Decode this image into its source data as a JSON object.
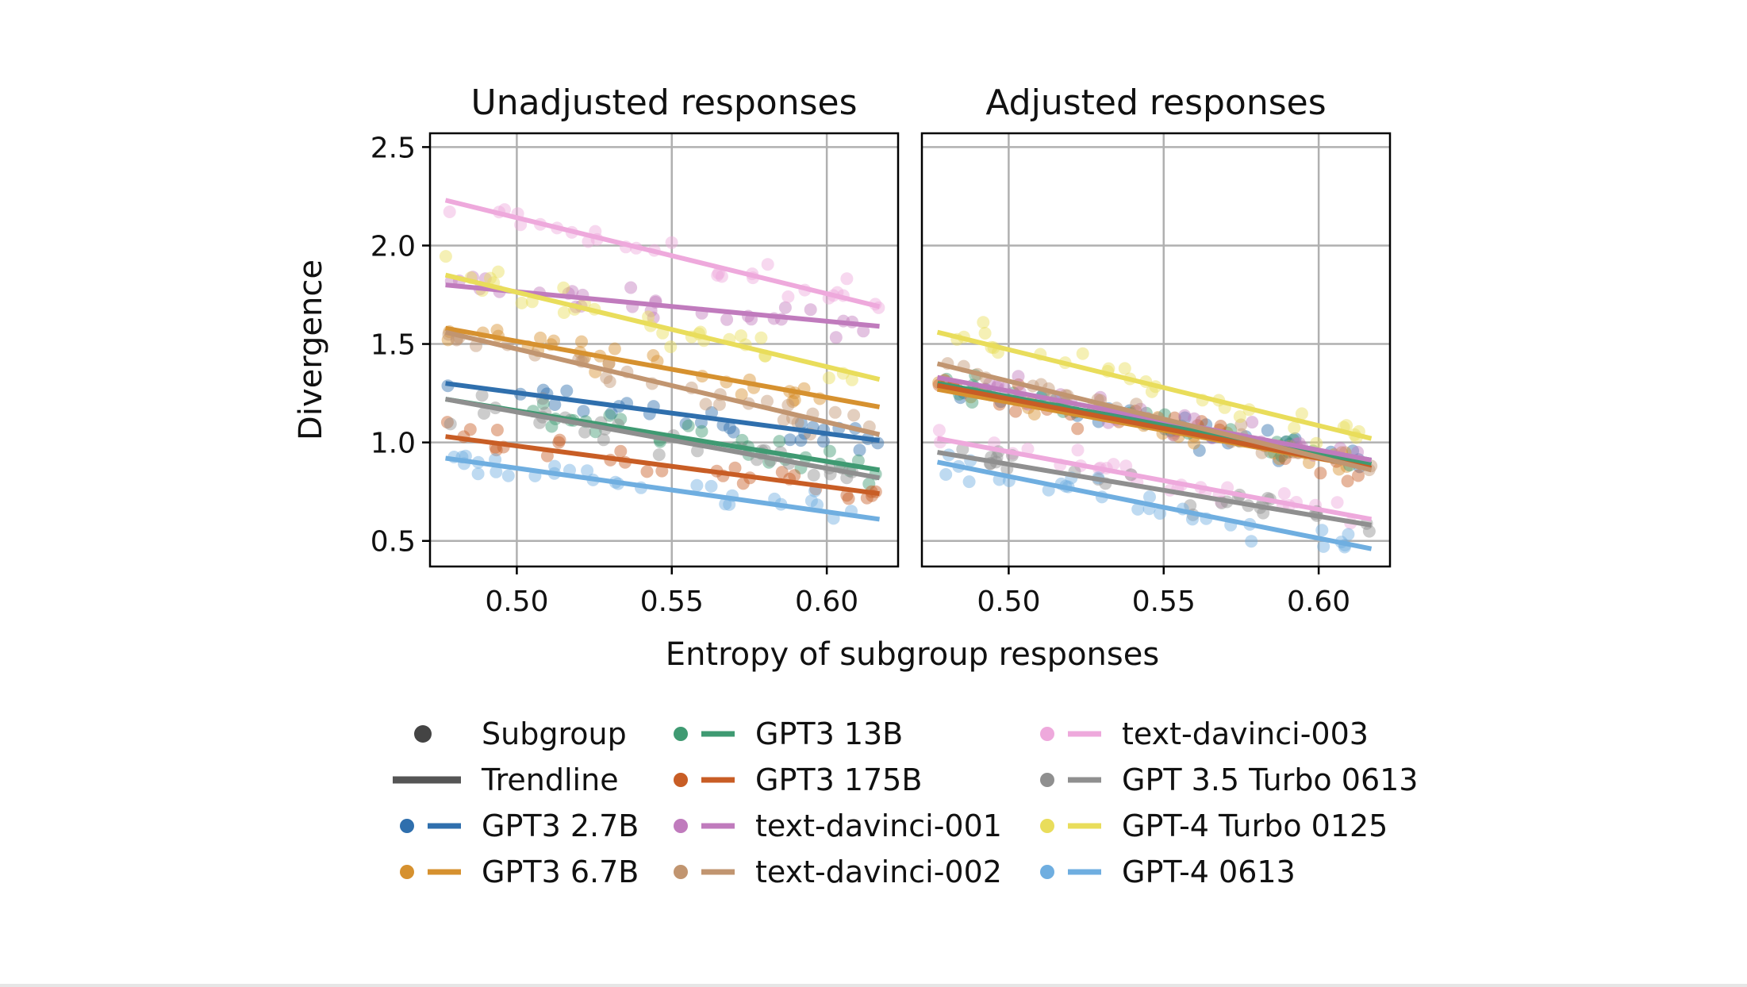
{
  "chart_data": {
    "type": "scatter",
    "xlabel": "Entropy of subgroup responses",
    "ylabel": "Divergence",
    "xlim": [
      0.472,
      0.623
    ],
    "ylim": [
      0.37,
      2.57
    ],
    "xticks": [
      0.5,
      0.55,
      0.6
    ],
    "xtick_labels": [
      "0.50",
      "0.55",
      "0.60"
    ],
    "yticks": [
      0.5,
      1.0,
      1.5,
      2.0,
      2.5
    ],
    "ytick_labels": [
      "0.5",
      "1.0",
      "1.5",
      "2.0",
      "2.5"
    ],
    "grid": true,
    "legend_placement": "bottom-center",
    "legend_generic": [
      {
        "label": "Subgroup",
        "kind": "marker",
        "color": "#444444"
      },
      {
        "label": "Trendline",
        "kind": "line",
        "color": "#555555"
      }
    ],
    "models": [
      {
        "name": "GPT3 2.7B",
        "color": "#2f6fad"
      },
      {
        "name": "GPT3 6.7B",
        "color": "#d6912f"
      },
      {
        "name": "GPT3 13B",
        "color": "#3f9a72"
      },
      {
        "name": "GPT3 175B",
        "color": "#c85d25"
      },
      {
        "name": "text-davinci-001",
        "color": "#c07bbd"
      },
      {
        "name": "text-davinci-002",
        "color": "#c19570"
      },
      {
        "name": "text-davinci-003",
        "color": "#eea9dc"
      },
      {
        "name": "GPT 3.5 Turbo 0613",
        "color": "#8f8f8f"
      },
      {
        "name": "GPT-4 Turbo 0125",
        "color": "#e9dd5b"
      },
      {
        "name": "GPT-4 0613",
        "color": "#6faee0"
      }
    ],
    "scatter_x_range": [
      0.477,
      0.617
    ],
    "panels": [
      {
        "title": "Unadjusted responses",
        "trendlines": [
          {
            "model": "GPT3 2.7B",
            "x": [
              0.477,
              0.617
            ],
            "y": [
              1.3,
              1.01
            ]
          },
          {
            "model": "GPT3 6.7B",
            "x": [
              0.477,
              0.617
            ],
            "y": [
              1.58,
              1.18
            ]
          },
          {
            "model": "GPT3 13B",
            "x": [
              0.477,
              0.617
            ],
            "y": [
              1.22,
              0.86
            ]
          },
          {
            "model": "GPT3 175B",
            "x": [
              0.477,
              0.617
            ],
            "y": [
              1.03,
              0.74
            ]
          },
          {
            "model": "text-davinci-001",
            "x": [
              0.477,
              0.617
            ],
            "y": [
              1.8,
              1.59
            ]
          },
          {
            "model": "text-davinci-002",
            "x": [
              0.477,
              0.617
            ],
            "y": [
              1.56,
              1.04
            ]
          },
          {
            "model": "text-davinci-003",
            "x": [
              0.477,
              0.617
            ],
            "y": [
              2.23,
              1.69
            ]
          },
          {
            "model": "GPT 3.5 Turbo 0613",
            "x": [
              0.477,
              0.617
            ],
            "y": [
              1.22,
              0.82
            ]
          },
          {
            "model": "GPT-4 Turbo 0125",
            "x": [
              0.477,
              0.617
            ],
            "y": [
              1.85,
              1.32
            ]
          },
          {
            "model": "GPT-4 0613",
            "x": [
              0.477,
              0.617
            ],
            "y": [
              0.92,
              0.61
            ]
          }
        ]
      },
      {
        "title": "Adjusted responses",
        "trendlines": [
          {
            "model": "GPT3 2.7B",
            "x": [
              0.477,
              0.617
            ],
            "y": [
              1.29,
              0.91
            ]
          },
          {
            "model": "GPT3 6.7B",
            "x": [
              0.477,
              0.617
            ],
            "y": [
              1.27,
              0.87
            ]
          },
          {
            "model": "GPT3 13B",
            "x": [
              0.477,
              0.617
            ],
            "y": [
              1.3,
              0.89
            ]
          },
          {
            "model": "GPT3 175B",
            "x": [
              0.477,
              0.617
            ],
            "y": [
              1.29,
              0.87
            ]
          },
          {
            "model": "text-davinci-001",
            "x": [
              0.477,
              0.617
            ],
            "y": [
              1.33,
              0.91
            ]
          },
          {
            "model": "text-davinci-002",
            "x": [
              0.477,
              0.617
            ],
            "y": [
              1.4,
              0.86
            ]
          },
          {
            "model": "text-davinci-003",
            "x": [
              0.477,
              0.617
            ],
            "y": [
              1.02,
              0.61
            ]
          },
          {
            "model": "GPT 3.5 Turbo 0613",
            "x": [
              0.477,
              0.617
            ],
            "y": [
              0.95,
              0.58
            ]
          },
          {
            "model": "GPT-4 Turbo 0125",
            "x": [
              0.477,
              0.617
            ],
            "y": [
              1.56,
              1.02
            ]
          },
          {
            "model": "GPT-4 0613",
            "x": [
              0.477,
              0.617
            ],
            "y": [
              0.9,
              0.46
            ]
          }
        ]
      }
    ]
  }
}
